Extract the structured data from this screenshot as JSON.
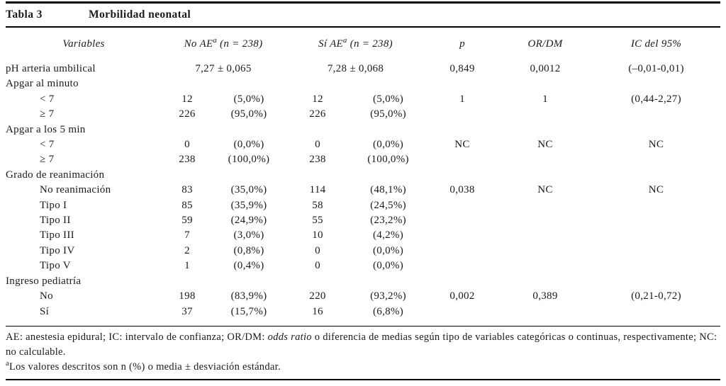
{
  "page": {
    "label": "Tabla 3",
    "title": "Morbilidad neonatal"
  },
  "table": {
    "header": {
      "variables": "Variables",
      "no_ae": {
        "prefix": "No AE",
        "sup": "a",
        "suffix": " (n = 238)"
      },
      "si_ae": {
        "prefix": "Sí AE",
        "sup": "a",
        "suffix": " (n = 238)"
      },
      "p": "p",
      "or_dm": "OR/DM",
      "ic": "IC del 95%"
    },
    "rows": [
      {
        "type": "span",
        "indent": 0,
        "label": "pH arteria umbilical",
        "no_ae": "7,27 ± 0,065",
        "si_ae": "7,28 ± 0,068",
        "p": "0,849",
        "or_dm": "0,0012",
        "ic": "(–0,01-0,01)"
      },
      {
        "type": "section",
        "indent": 0,
        "label": "Apgar al minuto"
      },
      {
        "type": "data",
        "indent": 1,
        "label": "< 7",
        "no_n": "12",
        "no_pct": "(5,0%)",
        "si_n": "12",
        "si_pct": "(5,0%)",
        "p": "1",
        "or_dm": "1",
        "ic": "(0,44-2,27)"
      },
      {
        "type": "data",
        "indent": 1,
        "label": "≥ 7",
        "no_n": "226",
        "no_pct": "(95,0%)",
        "si_n": "226",
        "si_pct": "(95,0%)",
        "p": "",
        "or_dm": "",
        "ic": ""
      },
      {
        "type": "section",
        "indent": 0,
        "label": "Apgar a los 5 min"
      },
      {
        "type": "data",
        "indent": 1,
        "label": "< 7",
        "no_n": "0",
        "no_pct": "(0,0%)",
        "si_n": "0",
        "si_pct": "(0,0%)",
        "p": "NC",
        "or_dm": "NC",
        "ic": "NC"
      },
      {
        "type": "data",
        "indent": 1,
        "label": "≥ 7",
        "no_n": "238",
        "no_pct": "(100,0%)",
        "si_n": "238",
        "si_pct": "(100,0%)",
        "p": "",
        "or_dm": "",
        "ic": ""
      },
      {
        "type": "section",
        "indent": 0,
        "label": "Grado de reanimación"
      },
      {
        "type": "data",
        "indent": 1,
        "label": "No reanimación",
        "no_n": "83",
        "no_pct": "(35,0%)",
        "si_n": "114",
        "si_pct": "(48,1%)",
        "p": "0,038",
        "or_dm": "NC",
        "ic": "NC"
      },
      {
        "type": "data",
        "indent": 1,
        "label": "Tipo I",
        "no_n": "85",
        "no_pct": "(35,9%)",
        "si_n": "58",
        "si_pct": "(24,5%)",
        "p": "",
        "or_dm": "",
        "ic": ""
      },
      {
        "type": "data",
        "indent": 1,
        "label": "Tipo II",
        "no_n": "59",
        "no_pct": "(24,9%)",
        "si_n": "55",
        "si_pct": "(23,2%)",
        "p": "",
        "or_dm": "",
        "ic": ""
      },
      {
        "type": "data",
        "indent": 1,
        "label": "Tipo III",
        "no_n": "7",
        "no_pct": "(3,0%)",
        "si_n": "10",
        "si_pct": "(4,2%)",
        "p": "",
        "or_dm": "",
        "ic": ""
      },
      {
        "type": "data",
        "indent": 1,
        "label": "Tipo IV",
        "no_n": "2",
        "no_pct": "(0,8%)",
        "si_n": "0",
        "si_pct": "(0,0%)",
        "p": "",
        "or_dm": "",
        "ic": ""
      },
      {
        "type": "data",
        "indent": 1,
        "label": "Tipo V",
        "no_n": "1",
        "no_pct": "(0,4%)",
        "si_n": "0",
        "si_pct": "(0,0%)",
        "p": "",
        "or_dm": "",
        "ic": ""
      },
      {
        "type": "section",
        "indent": 0,
        "label": "Ingreso pediatría"
      },
      {
        "type": "data",
        "indent": 1,
        "label": "No",
        "no_n": "198",
        "no_pct": "(83,9%)",
        "si_n": "220",
        "si_pct": "(93,2%)",
        "p": "0,002",
        "or_dm": "0,389",
        "ic": "(0,21-0,72)"
      },
      {
        "type": "data",
        "indent": 1,
        "label": "Sí",
        "no_n": "37",
        "no_pct": "(15,7%)",
        "si_n": "16",
        "si_pct": "(6,8%)",
        "p": "",
        "or_dm": "",
        "ic": ""
      }
    ]
  },
  "footnotes": {
    "note1": [
      {
        "text": "AE: anestesia epidural; IC: intervalo de confianza; OR/DM: ",
        "italic": false
      },
      {
        "text": "odds ratio",
        "italic": true
      },
      {
        "text": " o diferencia de medias según tipo de variables categóricas o continuas, respectivamente; NC: no calculable.",
        "italic": false
      }
    ],
    "note2": {
      "sup": "a",
      "text": "Los valores descritos son n (%) o media ± desviación estándar."
    }
  }
}
